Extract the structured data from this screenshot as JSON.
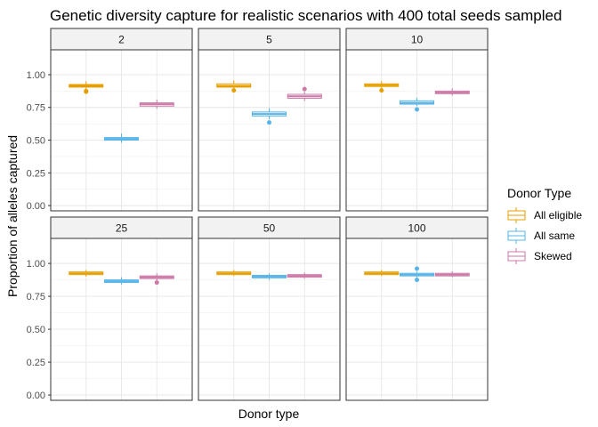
{
  "chart_data": {
    "type": "boxplot",
    "title": "Genetic diversity capture for realistic scenarios with 400 total seeds sampled",
    "xlabel": "Donor type",
    "ylabel": "Proportion of alleles captured",
    "ylim": [
      -0.04,
      1.19
    ],
    "yticks": [
      "0.00",
      "0.25",
      "0.50",
      "0.75",
      "1.00"
    ],
    "ytick_values": [
      0,
      0.25,
      0.5,
      0.75,
      1.0
    ],
    "grid": true,
    "facet_layout": "2 rows x 3 columns",
    "legend": {
      "title": "Donor Type",
      "position": "right",
      "entries": [
        {
          "label": "All eligible",
          "color": "#E69F00"
        },
        {
          "label": "All same",
          "color": "#56B4E9"
        },
        {
          "label": "Skewed",
          "color": "#CC79A7"
        }
      ]
    },
    "categories": [
      "All eligible",
      "All same",
      "Skewed"
    ],
    "panels": [
      {
        "label": "2",
        "boxes": [
          {
            "category": "All eligible",
            "whisker_low": 0.89,
            "q1": 0.905,
            "median": 0.915,
            "q3": 0.925,
            "whisker_high": 0.95,
            "outliers": [
              0.875,
              0.87
            ]
          },
          {
            "category": "All same",
            "whisker_low": 0.48,
            "q1": 0.5,
            "median": 0.51,
            "q3": 0.52,
            "whisker_high": 0.55,
            "outliers": []
          },
          {
            "category": "Skewed",
            "whisker_low": 0.74,
            "q1": 0.76,
            "median": 0.775,
            "q3": 0.785,
            "whisker_high": 0.81,
            "outliers": []
          }
        ]
      },
      {
        "label": "5",
        "boxes": [
          {
            "category": "All eligible",
            "whisker_low": 0.89,
            "q1": 0.905,
            "median": 0.915,
            "q3": 0.93,
            "whisker_high": 0.955,
            "outliers": [
              0.88
            ]
          },
          {
            "category": "All same",
            "whisker_low": 0.66,
            "q1": 0.685,
            "median": 0.7,
            "q3": 0.715,
            "whisker_high": 0.745,
            "outliers": [
              0.635
            ]
          },
          {
            "category": "Skewed",
            "whisker_low": 0.8,
            "q1": 0.82,
            "median": 0.835,
            "q3": 0.85,
            "whisker_high": 0.87,
            "outliers": [
              0.89
            ]
          }
        ]
      },
      {
        "label": "10",
        "boxes": [
          {
            "category": "All eligible",
            "whisker_low": 0.895,
            "q1": 0.91,
            "median": 0.92,
            "q3": 0.93,
            "whisker_high": 0.95,
            "outliers": [
              0.88
            ]
          },
          {
            "category": "All same",
            "whisker_low": 0.76,
            "q1": 0.775,
            "median": 0.785,
            "q3": 0.8,
            "whisker_high": 0.825,
            "outliers": [
              0.735
            ]
          },
          {
            "category": "Skewed",
            "whisker_low": 0.84,
            "q1": 0.855,
            "median": 0.865,
            "q3": 0.875,
            "whisker_high": 0.895,
            "outliers": []
          }
        ]
      },
      {
        "label": "25",
        "boxes": [
          {
            "category": "All eligible",
            "whisker_low": 0.9,
            "q1": 0.915,
            "median": 0.925,
            "q3": 0.935,
            "whisker_high": 0.95,
            "outliers": []
          },
          {
            "category": "All same",
            "whisker_low": 0.84,
            "q1": 0.855,
            "median": 0.865,
            "q3": 0.875,
            "whisker_high": 0.895,
            "outliers": []
          },
          {
            "category": "Skewed",
            "whisker_low": 0.87,
            "q1": 0.885,
            "median": 0.895,
            "q3": 0.905,
            "whisker_high": 0.925,
            "outliers": [
              0.855
            ]
          }
        ]
      },
      {
        "label": "50",
        "boxes": [
          {
            "category": "All eligible",
            "whisker_low": 0.905,
            "q1": 0.915,
            "median": 0.925,
            "q3": 0.935,
            "whisker_high": 0.95,
            "outliers": []
          },
          {
            "category": "All same",
            "whisker_low": 0.875,
            "q1": 0.89,
            "median": 0.9,
            "q3": 0.91,
            "whisker_high": 0.925,
            "outliers": []
          },
          {
            "category": "Skewed",
            "whisker_low": 0.885,
            "q1": 0.895,
            "median": 0.905,
            "q3": 0.915,
            "whisker_high": 0.93,
            "outliers": []
          }
        ]
      },
      {
        "label": "100",
        "boxes": [
          {
            "category": "All eligible",
            "whisker_low": 0.905,
            "q1": 0.915,
            "median": 0.925,
            "q3": 0.935,
            "whisker_high": 0.95,
            "outliers": []
          },
          {
            "category": "All same",
            "whisker_low": 0.895,
            "q1": 0.905,
            "median": 0.915,
            "q3": 0.925,
            "whisker_high": 0.94,
            "outliers": [
              0.96,
              0.875
            ]
          },
          {
            "category": "Skewed",
            "whisker_low": 0.895,
            "q1": 0.905,
            "median": 0.915,
            "q3": 0.925,
            "whisker_high": 0.94,
            "outliers": []
          }
        ]
      }
    ]
  }
}
